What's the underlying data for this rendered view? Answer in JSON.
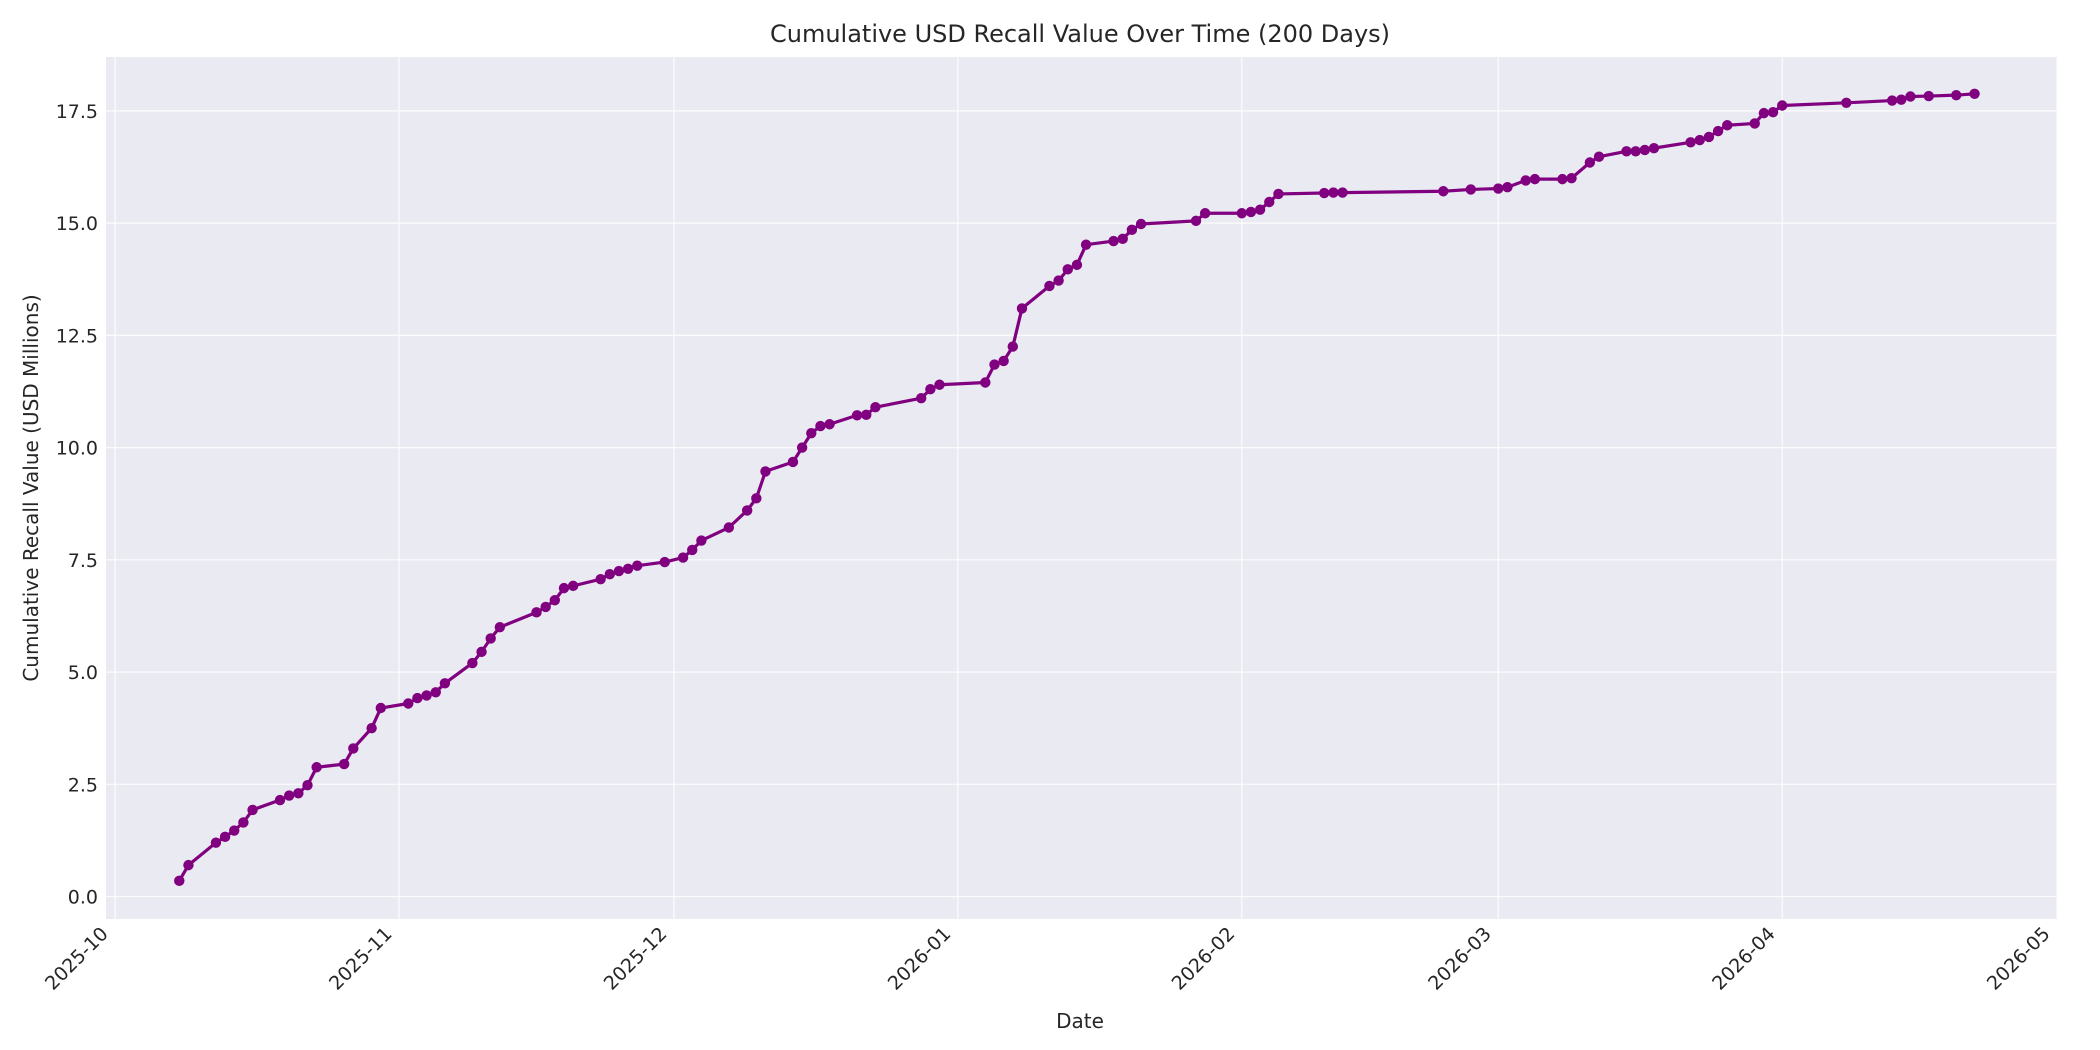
{
  "chart_data": {
    "type": "line",
    "title": "Cumulative USD Recall Value Over Time (200 Days)",
    "xlabel": "Date",
    "ylabel": "Cumulative Recall Value (USD Millions)",
    "x_ticks": [
      "2025-10",
      "2025-11",
      "2025-12",
      "2026-01",
      "2026-02",
      "2026-03",
      "2026-04",
      "2026-05"
    ],
    "y_ticks": [
      "0.0",
      "2.5",
      "5.0",
      "7.5",
      "10.0",
      "12.5",
      "15.0",
      "17.5"
    ],
    "xlim": [
      "2025-09-30",
      "2026-05-01"
    ],
    "ylim": [
      -0.5,
      18.7
    ],
    "grid": true,
    "line_color": "#800080",
    "plot_background": "#eaeaf2",
    "series": [
      {
        "values": [
          [
            "2025-10-08",
            0.35
          ],
          [
            "2025-10-09",
            0.7
          ],
          [
            "2025-10-12",
            1.2
          ],
          [
            "2025-10-13",
            1.33
          ],
          [
            "2025-10-14",
            1.47
          ],
          [
            "2025-10-15",
            1.65
          ],
          [
            "2025-10-16",
            1.93
          ],
          [
            "2025-10-19",
            2.15
          ],
          [
            "2025-10-20",
            2.25
          ],
          [
            "2025-10-21",
            2.3
          ],
          [
            "2025-10-22",
            2.48
          ],
          [
            "2025-10-23",
            2.88
          ],
          [
            "2025-10-26",
            2.95
          ],
          [
            "2025-10-27",
            3.3
          ],
          [
            "2025-10-29",
            3.75
          ],
          [
            "2025-10-30",
            4.2
          ],
          [
            "2025-11-02",
            4.3
          ],
          [
            "2025-11-03",
            4.42
          ],
          [
            "2025-11-04",
            4.48
          ],
          [
            "2025-11-05",
            4.55
          ],
          [
            "2025-11-06",
            4.75
          ],
          [
            "2025-11-09",
            5.2
          ],
          [
            "2025-11-10",
            5.45
          ],
          [
            "2025-11-11",
            5.75
          ],
          [
            "2025-11-12",
            6.0
          ],
          [
            "2025-11-16",
            6.33
          ],
          [
            "2025-11-17",
            6.45
          ],
          [
            "2025-11-18",
            6.6
          ],
          [
            "2025-11-19",
            6.87
          ],
          [
            "2025-11-20",
            6.92
          ],
          [
            "2025-11-23",
            7.07
          ],
          [
            "2025-11-24",
            7.18
          ],
          [
            "2025-11-25",
            7.25
          ],
          [
            "2025-11-26",
            7.3
          ],
          [
            "2025-11-27",
            7.37
          ],
          [
            "2025-11-30",
            7.45
          ],
          [
            "2025-12-02",
            7.55
          ],
          [
            "2025-12-03",
            7.72
          ],
          [
            "2025-12-04",
            7.93
          ],
          [
            "2025-12-07",
            8.22
          ],
          [
            "2025-12-09",
            8.6
          ],
          [
            "2025-12-10",
            8.87
          ],
          [
            "2025-12-11",
            9.47
          ],
          [
            "2025-12-14",
            9.68
          ],
          [
            "2025-12-15",
            10.0
          ],
          [
            "2025-12-16",
            10.32
          ],
          [
            "2025-12-17",
            10.48
          ],
          [
            "2025-12-18",
            10.52
          ],
          [
            "2025-12-21",
            10.72
          ],
          [
            "2025-12-22",
            10.73
          ],
          [
            "2025-12-23",
            10.9
          ],
          [
            "2025-12-28",
            11.1
          ],
          [
            "2025-12-29",
            11.3
          ],
          [
            "2025-12-30",
            11.4
          ],
          [
            "2026-01-04",
            11.45
          ],
          [
            "2026-01-05",
            11.85
          ],
          [
            "2026-01-06",
            11.93
          ],
          [
            "2026-01-07",
            12.25
          ],
          [
            "2026-01-08",
            13.1
          ],
          [
            "2026-01-11",
            13.6
          ],
          [
            "2026-01-12",
            13.72
          ],
          [
            "2026-01-13",
            13.97
          ],
          [
            "2026-01-14",
            14.07
          ],
          [
            "2026-01-15",
            14.52
          ],
          [
            "2026-01-18",
            14.6
          ],
          [
            "2026-01-19",
            14.65
          ],
          [
            "2026-01-20",
            14.85
          ],
          [
            "2026-01-21",
            14.98
          ],
          [
            "2026-01-27",
            15.05
          ],
          [
            "2026-01-28",
            15.22
          ],
          [
            "2026-02-01",
            15.22
          ],
          [
            "2026-02-02",
            15.25
          ],
          [
            "2026-02-03",
            15.3
          ],
          [
            "2026-02-04",
            15.47
          ],
          [
            "2026-02-05",
            15.65
          ],
          [
            "2026-02-10",
            15.67
          ],
          [
            "2026-02-11",
            15.68
          ],
          [
            "2026-02-12",
            15.68
          ],
          [
            "2026-02-23",
            15.71
          ],
          [
            "2026-02-26",
            15.75
          ],
          [
            "2026-03-01",
            15.77
          ],
          [
            "2026-03-02",
            15.8
          ],
          [
            "2026-03-04",
            15.95
          ],
          [
            "2026-03-05",
            15.98
          ],
          [
            "2026-03-08",
            15.98
          ],
          [
            "2026-03-09",
            16.0
          ],
          [
            "2026-03-11",
            16.35
          ],
          [
            "2026-03-12",
            16.48
          ],
          [
            "2026-03-15",
            16.6
          ],
          [
            "2026-03-16",
            16.6
          ],
          [
            "2026-03-17",
            16.63
          ],
          [
            "2026-03-18",
            16.67
          ],
          [
            "2026-03-22",
            16.8
          ],
          [
            "2026-03-23",
            16.85
          ],
          [
            "2026-03-24",
            16.92
          ],
          [
            "2026-03-25",
            17.05
          ],
          [
            "2026-03-26",
            17.18
          ],
          [
            "2026-03-29",
            17.22
          ],
          [
            "2026-03-30",
            17.45
          ],
          [
            "2026-03-31",
            17.47
          ],
          [
            "2026-04-01",
            17.62
          ],
          [
            "2026-04-08",
            17.68
          ],
          [
            "2026-04-13",
            17.73
          ],
          [
            "2026-04-14",
            17.75
          ],
          [
            "2026-04-15",
            17.82
          ],
          [
            "2026-04-17",
            17.83
          ],
          [
            "2026-04-20",
            17.85
          ],
          [
            "2026-04-22",
            17.88
          ]
        ]
      }
    ]
  }
}
